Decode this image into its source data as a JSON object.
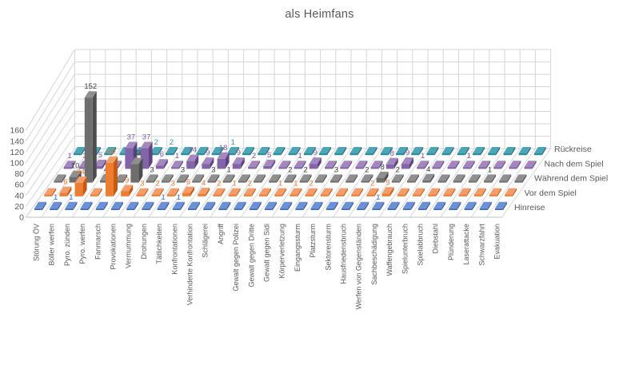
{
  "title": "als Heimfans",
  "chart_data": {
    "type": "bar",
    "subtype": "3d-column",
    "title": "als Heimfans",
    "categories": [
      "Störung ÖV",
      "Böller werfen",
      "Pyro. zünden",
      "Pyro. werfen",
      "Fanmarsch",
      "Provokationen",
      "Vermummung",
      "Drohungen",
      "Tätlichkeiten",
      "Konfrontationen",
      "Verhinderte Konfrontation",
      "Schlägerei",
      "Angriff",
      "Gewalt gegen Polizei",
      "Gewalt gegen Dritte",
      "Gewalt gegen Sidi",
      "Körperverletzung",
      "Eingangssturm",
      "Platzsturm",
      "Sektorensturm",
      "Hausfriedensbruch",
      "Werfen von Gegenständen",
      "Sachbeschädigung",
      "Waffengebrauch",
      "Spielunterbruch",
      "Spielabbruch",
      "Diebstahl",
      "Plünderung",
      "Laserattacke",
      "Schwarzfahrt",
      "Evakuation"
    ],
    "series": [
      {
        "name": "Hinreise",
        "color": "#4472C4",
        "top": "#6C90D4",
        "side": "#2F5597",
        "label_color": "#4472C4",
        "values": [
          0,
          1,
          1,
          0,
          0,
          0,
          0,
          0,
          1,
          1,
          0,
          0,
          0,
          0,
          0,
          0,
          0,
          0,
          0,
          0,
          0,
          0,
          1,
          0,
          0,
          0,
          0,
          0,
          0,
          0,
          0
        ]
      },
      {
        "name": "Vor dem Spiel",
        "color": "#ED7D31",
        "top": "#F29D6B",
        "side": "#C55A11",
        "label_color": "#ED7D31",
        "values": [
          0,
          6,
          24,
          0,
          60,
          9,
          3,
          2,
          3,
          6,
          4,
          2,
          1,
          2,
          0,
          1,
          1,
          2,
          0,
          0,
          0,
          2,
          5,
          0,
          0,
          0,
          0,
          0,
          0,
          0,
          0
        ]
      },
      {
        "name": "Während dem Spiel",
        "color": "#6E6E6E",
        "top": "#8F8F8F",
        "side": "#4D4D4D",
        "label_color": "#3F3F3F",
        "values": [
          0,
          10,
          152,
          4,
          0,
          33,
          3,
          0,
          3,
          0,
          3,
          1,
          0,
          0,
          0,
          2,
          2,
          0,
          3,
          0,
          2,
          8,
          2,
          0,
          4,
          0,
          0,
          0,
          1,
          0,
          0
        ]
      },
      {
        "name": "Nach dem Spiel",
        "color": "#8464A8",
        "top": "#A builds",
        "side": "#5F4382",
        "label_color": "#7B5AA6",
        "values": [
          1,
          3,
          5,
          0,
          37,
          37,
          6,
          1,
          14,
          9,
          18,
          9,
          2,
          5,
          0,
          1,
          9,
          0,
          0,
          0,
          0,
          8,
          9,
          1,
          0,
          0,
          1,
          0,
          0,
          0,
          0
        ]
      },
      {
        "name": "Rückreise",
        "color": "#2E8C9C",
        "top": "#4BA6B5",
        "side": "#1F6470",
        "label_color": "#2E9BAD",
        "values": [
          0,
          0,
          0,
          0,
          0,
          2,
          2,
          0,
          0,
          0,
          1,
          0,
          0,
          0,
          0,
          0,
          0,
          0,
          0,
          0,
          0,
          0,
          0,
          0,
          0,
          0,
          0,
          0,
          0,
          0,
          0
        ]
      }
    ],
    "value_axis": {
      "min": 0,
      "max": 160,
      "step": 20,
      "ticks": [
        "0",
        "20",
        "40",
        "60",
        "80",
        "100",
        "120",
        "140",
        "160"
      ]
    },
    "grid": true,
    "legend_position": "right-depth-axis"
  },
  "colors": {
    "grid": "#D6D6D6",
    "axis_text": "#595959",
    "background": "#FFFFFF"
  }
}
